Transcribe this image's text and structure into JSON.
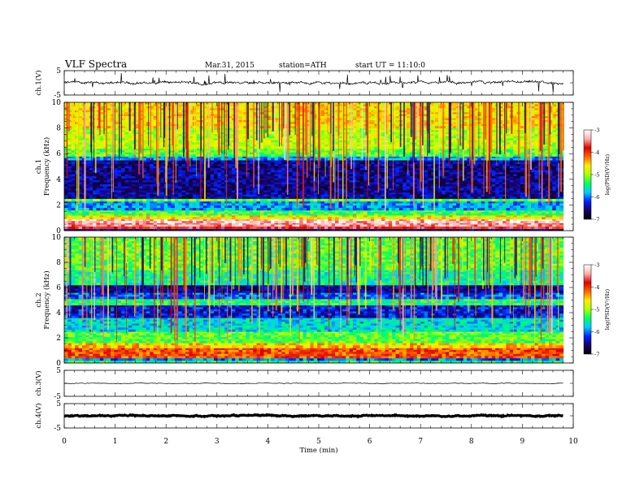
{
  "header": {
    "title": "VLF  Spectra",
    "date": "Mar.31, 2015",
    "station": "station=ATH",
    "start": "start  UT =   11:10:0"
  },
  "chart_data": [
    {
      "type": "line",
      "ylabel": "ch.1(V)",
      "ylim": [
        -5,
        5
      ],
      "y_ticks": [
        "5",
        "-5"
      ],
      "x_range_min": [
        0,
        9.8
      ],
      "baseline_V": 0,
      "noise_V": 0.6,
      "spikes": true
    },
    {
      "type": "heatmap",
      "ylabel": [
        "ch.1",
        "Frequency  (kHz)"
      ],
      "y_ticks": [
        "10",
        "8",
        "6",
        "4",
        "2",
        "0"
      ],
      "ylim_kHz": [
        0,
        10
      ],
      "x_range_min": [
        0,
        9.8
      ],
      "colorbar": {
        "label": "log(PSD(V²/Hz)",
        "ticks": [
          "-3",
          "-4",
          "-5",
          "-6",
          "-7"
        ],
        "range": [
          -7,
          -3
        ],
        "colors": [
          "#000000",
          "#1a0066",
          "#0022ff",
          "#00ccff",
          "#00ff66",
          "#aaff00",
          "#ffee00",
          "#ff6600",
          "#dd0000",
          "#ffb0b0",
          "#ffffff"
        ]
      },
      "bands_kHz": [
        {
          "from": 0.0,
          "to": 0.15,
          "level": -6.5
        },
        {
          "from": 0.15,
          "to": 0.35,
          "level": -3.8
        },
        {
          "from": 0.35,
          "to": 0.6,
          "level": -3.4
        },
        {
          "from": 0.6,
          "to": 0.9,
          "level": -3.3
        },
        {
          "from": 0.9,
          "to": 1.2,
          "level": -4.6
        },
        {
          "from": 1.2,
          "to": 1.6,
          "level": -5.3
        },
        {
          "from": 1.6,
          "to": 2.3,
          "level": -5.9
        },
        {
          "from": 2.3,
          "to": 2.5,
          "level": -5.2
        },
        {
          "from": 2.5,
          "to": 5.5,
          "level": -6.5
        },
        {
          "from": 5.5,
          "to": 5.8,
          "level": -5.9
        },
        {
          "from": 5.8,
          "to": 6.4,
          "level": -5.2
        },
        {
          "from": 6.4,
          "to": 8.0,
          "level": -4.9
        },
        {
          "from": 8.0,
          "to": 10.0,
          "level": -4.6
        }
      ]
    },
    {
      "type": "heatmap",
      "ylabel": [
        "ch.2",
        "Frequency  (kHz)"
      ],
      "y_ticks": [
        "10",
        "8",
        "6",
        "4",
        "2",
        "0"
      ],
      "ylim_kHz": [
        0,
        10
      ],
      "x_range_min": [
        0,
        9.8
      ],
      "colorbar": {
        "label": "log(PSD(V²/Hz)",
        "ticks": [
          "-3",
          "-4",
          "-5",
          "-6",
          "-7"
        ],
        "range": [
          -7,
          -3
        ],
        "colors": [
          "#000000",
          "#1a0066",
          "#0022ff",
          "#00ccff",
          "#00ff66",
          "#aaff00",
          "#ffee00",
          "#ff6600",
          "#dd0000",
          "#ffb0b0",
          "#ffffff"
        ]
      },
      "bands_kHz": [
        {
          "from": 0.0,
          "to": 0.2,
          "level": -5.4
        },
        {
          "from": 0.2,
          "to": 0.4,
          "level": -6.0
        },
        {
          "from": 0.4,
          "to": 1.2,
          "level": -4.1
        },
        {
          "from": 1.2,
          "to": 1.6,
          "level": -4.5
        },
        {
          "from": 1.6,
          "to": 2.5,
          "level": -5.2
        },
        {
          "from": 2.5,
          "to": 3.6,
          "level": -5.7
        },
        {
          "from": 3.6,
          "to": 4.6,
          "level": -6.3
        },
        {
          "from": 4.6,
          "to": 5.1,
          "level": -5.4
        },
        {
          "from": 5.1,
          "to": 5.6,
          "level": -6.1
        },
        {
          "from": 5.6,
          "to": 6.2,
          "level": -6.5
        },
        {
          "from": 6.2,
          "to": 7.4,
          "level": -5.5
        },
        {
          "from": 7.4,
          "to": 10.0,
          "level": -5.2
        }
      ]
    },
    {
      "type": "line",
      "ylabel": "ch.3(V)",
      "ylim": [
        -5,
        5
      ],
      "y_ticks": [
        "5",
        "-5"
      ],
      "x_range_min": [
        0,
        9.8
      ],
      "baseline_V": 0,
      "noise_V": 0.15,
      "spikes": false
    },
    {
      "type": "line",
      "ylabel": "ch.4(V)",
      "ylim": [
        -5,
        5
      ],
      "y_ticks": [
        "5",
        "-5"
      ],
      "x_range_min": [
        0,
        9.8
      ],
      "baseline_V": 0,
      "noise_V": 0.25,
      "spikes": false,
      "thick": true
    }
  ],
  "x_axis": {
    "label": "Time  (min)",
    "ticks": [
      "0",
      "1",
      "2",
      "3",
      "4",
      "5",
      "6",
      "7",
      "8",
      "9",
      "10"
    ],
    "xlim": [
      0,
      10
    ]
  }
}
